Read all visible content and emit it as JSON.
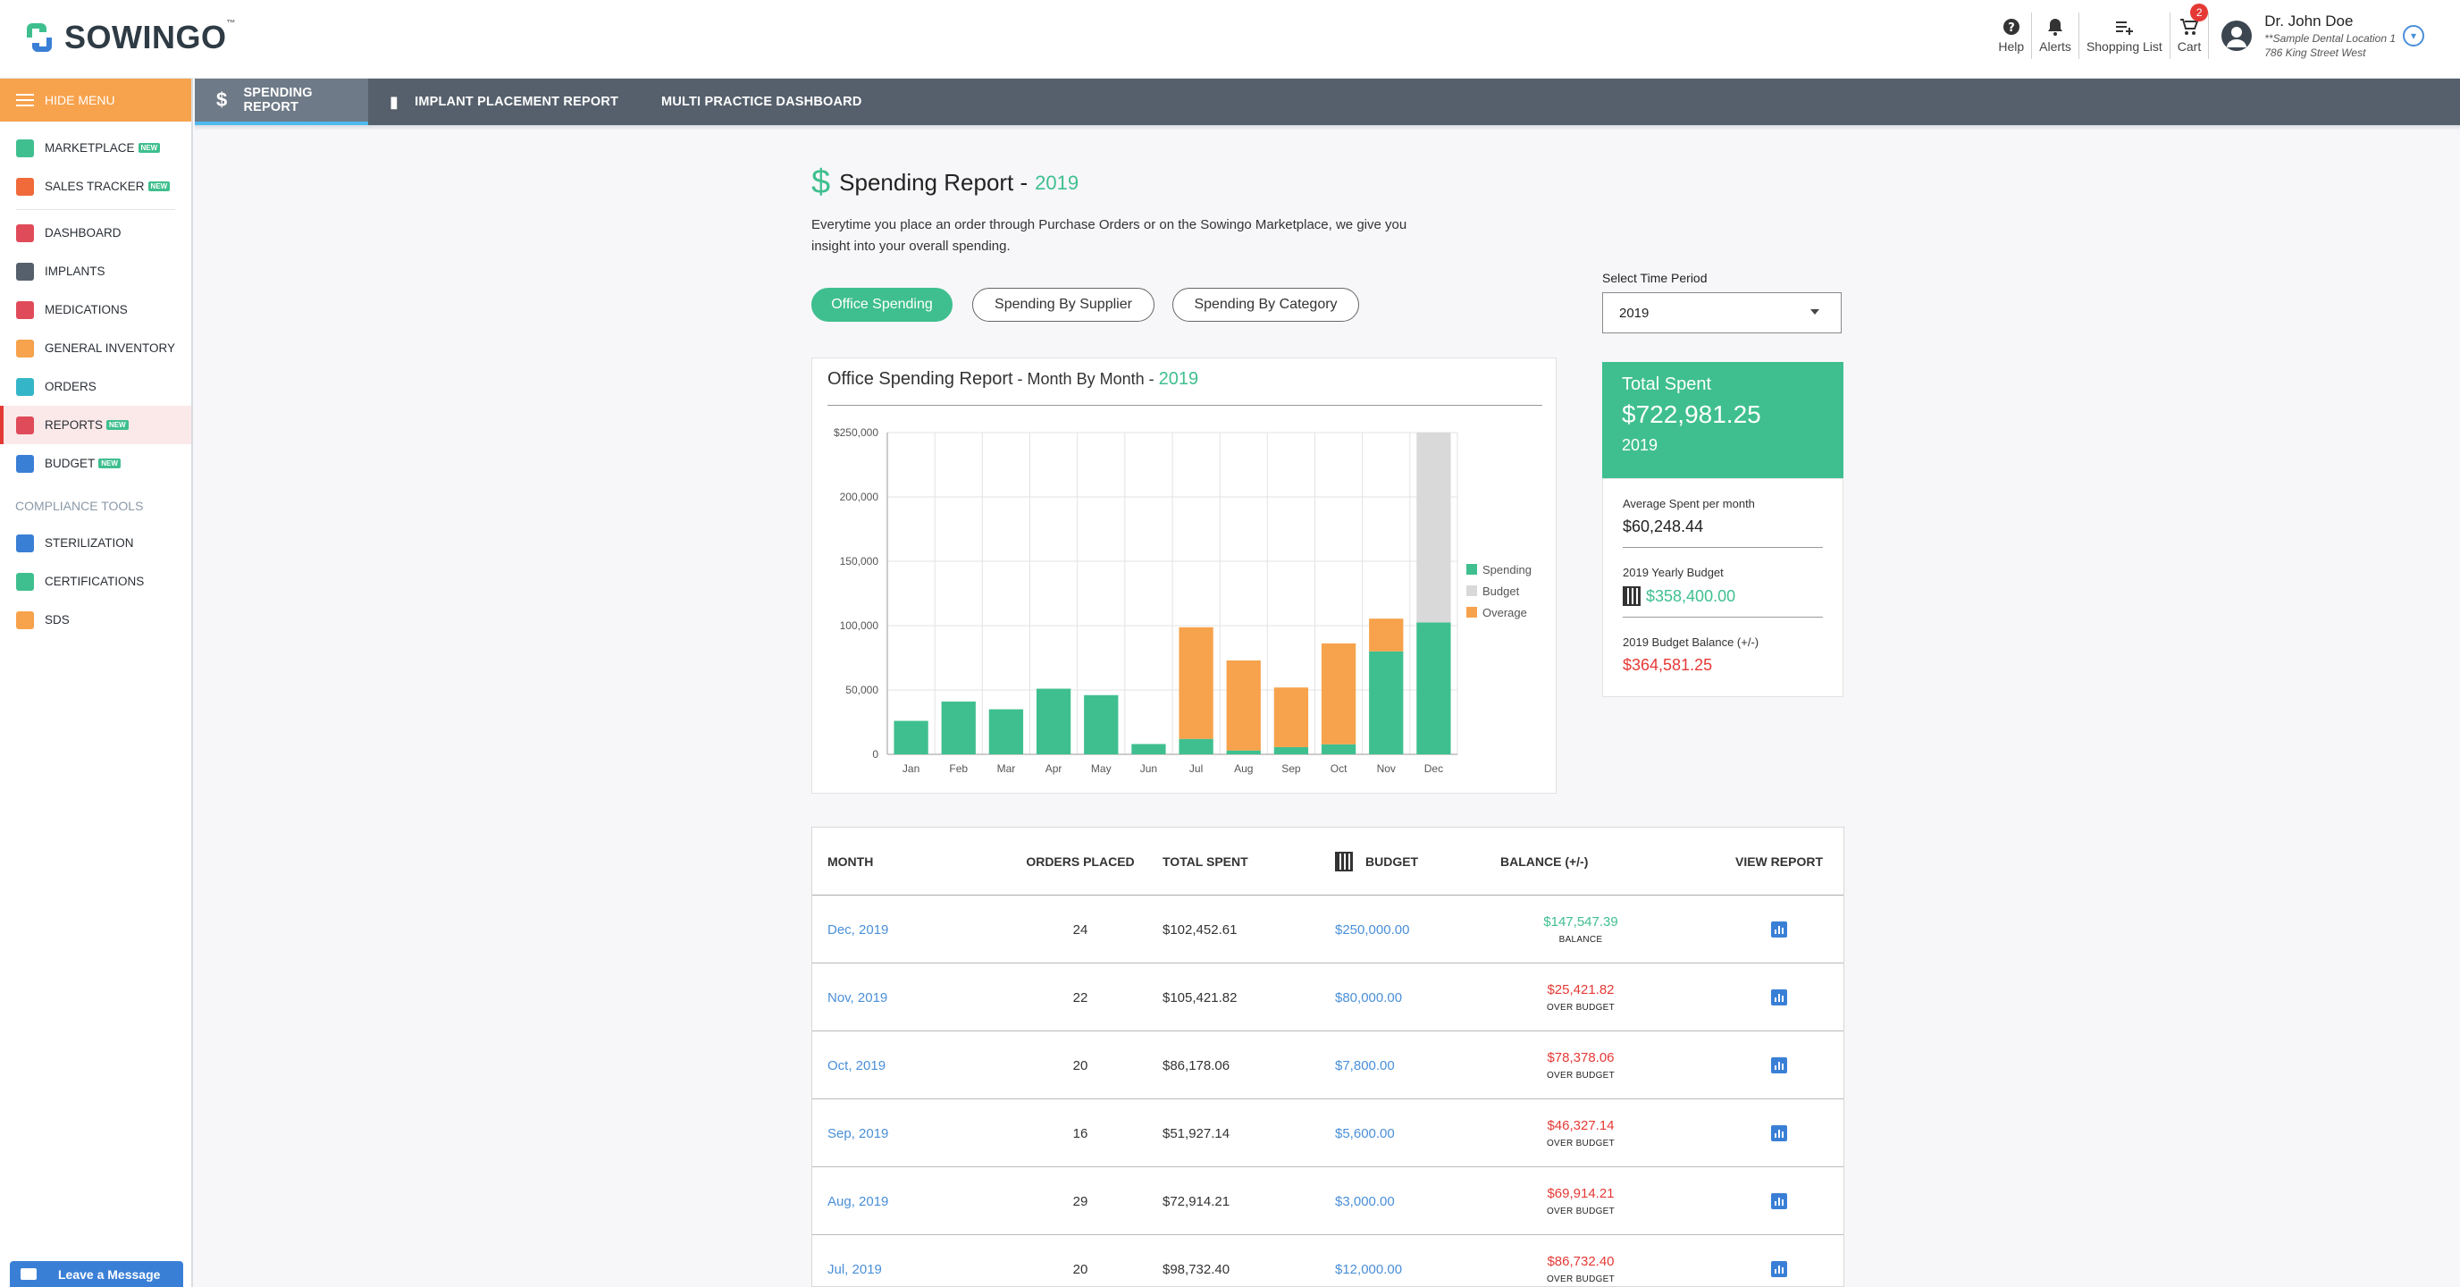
{
  "brand": {
    "name": "SOWINGO",
    "tm": "™"
  },
  "header_tools": {
    "help": "Help",
    "alerts": "Alerts",
    "shopping_list": "Shopping List",
    "cart": "Cart",
    "cart_count": "2",
    "user_name": "Dr. John Doe",
    "user_location": "**Sample Dental Location 1",
    "user_address": "786 King Street West"
  },
  "sidebar": {
    "hide_menu": "HIDE MENU",
    "new_badge": "NEW",
    "items": [
      {
        "label": "MARKETPLACE",
        "color": "#3fbf8f",
        "icon": "store-icon",
        "new": true
      },
      {
        "label": "SALES TRACKER",
        "color": "#f06a3a",
        "icon": "tag-icon",
        "new": true
      },
      {
        "label": "DASHBOARD",
        "color": "#e04b5a",
        "icon": "dashboard-icon",
        "new": false
      },
      {
        "label": "IMPLANTS",
        "color": "#55606c",
        "icon": "implant-icon",
        "new": false
      },
      {
        "label": "MEDICATIONS",
        "color": "#e04b5a",
        "icon": "medical-kit-icon",
        "new": false
      },
      {
        "label": "GENERAL INVENTORY",
        "color": "#f7a24c",
        "icon": "list-icon",
        "new": false
      },
      {
        "label": "ORDERS",
        "color": "#35b6c8",
        "icon": "clipboard-icon",
        "new": false
      },
      {
        "label": "REPORTS",
        "color": "#e04b5a",
        "icon": "bar-chart-icon",
        "new": true
      },
      {
        "label": "BUDGET",
        "color": "#3a7fd6",
        "icon": "calculator-icon",
        "new": true
      }
    ],
    "compliance_heading": "COMPLIANCE TOOLS",
    "compliance_items": [
      {
        "label": "STERILIZATION",
        "color": "#3a7fd6",
        "icon": "sterilization-icon"
      },
      {
        "label": "CERTIFICATIONS",
        "color": "#3fbf8f",
        "icon": "shield-check-icon"
      },
      {
        "label": "SDS",
        "color": "#f7a24c",
        "icon": "diamond-warning-icon"
      }
    ],
    "leave_message": "Leave a Message"
  },
  "subnav": {
    "tabs": [
      "SPENDING REPORT",
      "IMPLANT PLACEMENT REPORT",
      "MULTI PRACTICE DASHBOARD"
    ]
  },
  "page": {
    "title": "Spending Report -",
    "year": "2019",
    "intro": "Everytime you place an order through Purchase Orders or on the Sowingo Marketplace, we give you insight into your overall spending.",
    "pills": [
      "Office Spending",
      "Spending By Supplier",
      "Spending By Category"
    ]
  },
  "time_period": {
    "label": "Select Time Period",
    "value": "2019"
  },
  "chart_title": {
    "main": "Office Spending Report",
    "sub": " - Month By Month - ",
    "year": "2019"
  },
  "chart_data": {
    "type": "bar",
    "stacked": true,
    "categories": [
      "Jan",
      "Feb",
      "Mar",
      "Apr",
      "May",
      "Jun",
      "Jul",
      "Aug",
      "Sep",
      "Oct",
      "Nov",
      "Dec"
    ],
    "series": [
      {
        "name": "Spending",
        "color": "#3fbf8f",
        "values": [
          26000,
          41000,
          35000,
          51000,
          46000,
          8000,
          12000,
          3000,
          5600,
          7800,
          80000,
          102452.61
        ]
      },
      {
        "name": "Budget",
        "color": "#d9d9d9",
        "values": [
          0,
          0,
          0,
          0,
          0,
          0,
          0,
          0,
          0,
          0,
          0,
          147547.39
        ]
      },
      {
        "name": "Overage",
        "color": "#f7a24c",
        "values": [
          0,
          0,
          0,
          0,
          0,
          0,
          86732.4,
          69914.21,
          46327.14,
          78378.06,
          25421.82,
          0
        ]
      }
    ],
    "yticks": [
      "$250,000",
      "200,000",
      "150,000",
      "100,000",
      "50,000",
      "0"
    ],
    "ylim": [
      0,
      250000
    ],
    "grid": true,
    "legend": "right"
  },
  "summary": {
    "total_label": "Total Spent",
    "total_value": "$722,981.25",
    "total_year": "2019",
    "avg_label": "Average Spent per month",
    "avg_value": "$60,248.44",
    "budget_label": "2019 Yearly Budget",
    "budget_value": "$358,400.00",
    "balance_label": "2019 Budget Balance (+/-)",
    "balance_value": "$364,581.25"
  },
  "table": {
    "headers": [
      "MONTH",
      "ORDERS PLACED",
      "TOTAL SPENT",
      "BUDGET",
      "BALANCE (+/-)",
      "VIEW REPORT"
    ],
    "rows": [
      {
        "month": "Dec, 2019",
        "orders": "24",
        "spent": "$102,452.61",
        "budget": "$250,000.00",
        "balance": "$147,547.39",
        "status": "BALANCE",
        "positive": true
      },
      {
        "month": "Nov, 2019",
        "orders": "22",
        "spent": "$105,421.82",
        "budget": "$80,000.00",
        "balance": "$25,421.82",
        "status": "OVER BUDGET",
        "positive": false
      },
      {
        "month": "Oct, 2019",
        "orders": "20",
        "spent": "$86,178.06",
        "budget": "$7,800.00",
        "balance": "$78,378.06",
        "status": "OVER BUDGET",
        "positive": false
      },
      {
        "month": "Sep, 2019",
        "orders": "16",
        "spent": "$51,927.14",
        "budget": "$5,600.00",
        "balance": "$46,327.14",
        "status": "OVER BUDGET",
        "positive": false
      },
      {
        "month": "Aug, 2019",
        "orders": "29",
        "spent": "$72,914.21",
        "budget": "$3,000.00",
        "balance": "$69,914.21",
        "status": "OVER BUDGET",
        "positive": false
      },
      {
        "month": "Jul, 2019",
        "orders": "20",
        "spent": "$98,732.40",
        "budget": "$12,000.00",
        "balance": "$86,732.40",
        "status": "OVER BUDGET",
        "positive": false
      }
    ]
  }
}
